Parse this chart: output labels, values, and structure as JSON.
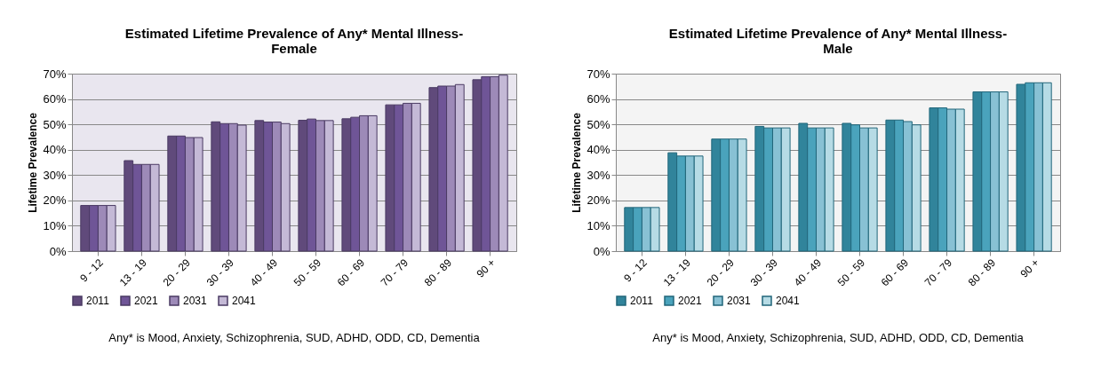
{
  "chart_data": [
    {
      "type": "bar",
      "title": "Estimated Lifetime Prevalence of Any* Mental Illness-\nFemale",
      "ylabel": "Lifetime Prevalence",
      "categories": [
        "9 - 12",
        "13 - 19",
        "20 - 29",
        "30 - 39",
        "40 - 49",
        "50 - 59",
        "60 - 69",
        "70 - 79",
        "80 - 89",
        "90 +"
      ],
      "series": [
        {
          "name": "2011",
          "color": "#604a7b",
          "values": [
            18,
            35.7,
            45.4,
            51,
            51.5,
            51.6,
            52.2,
            57.7,
            64.5,
            67.6
          ]
        },
        {
          "name": "2021",
          "color": "#6f5597",
          "values": [
            18,
            34.2,
            45.4,
            50.3,
            50.9,
            52.1,
            52.8,
            57.7,
            65.1,
            68.8
          ]
        },
        {
          "name": "2031",
          "color": "#9d8ab8",
          "values": [
            18,
            34.2,
            44.8,
            50.3,
            50.9,
            51.5,
            53.4,
            58.3,
            65.1,
            68.8
          ]
        },
        {
          "name": "2041",
          "color": "#c4b9d6",
          "values": [
            18,
            34.2,
            44.8,
            49.7,
            50.3,
            51.5,
            53.4,
            58.3,
            65.7,
            69.4
          ]
        }
      ],
      "ylim": [
        0,
        70
      ],
      "yticks": [
        {
          "value": 0,
          "label": "0%"
        },
        {
          "value": 10,
          "label": "10%"
        },
        {
          "value": 20,
          "label": "20%"
        },
        {
          "value": 30,
          "label": "30%"
        },
        {
          "value": 40,
          "label": "40%"
        },
        {
          "value": 50,
          "label": "50%"
        },
        {
          "value": 60,
          "label": "60%"
        },
        {
          "value": 70,
          "label": "70%"
        }
      ],
      "grid": "y",
      "legend": "bottom",
      "annotations": [
        "Any* is Mood, Anxiety, Schizophrenia, SUD, ADHD, ODD, CD, Dementia"
      ]
    },
    {
      "type": "bar",
      "title": "Estimated Lifetime Prevalence of Any* Mental Illness-\nMale",
      "ylabel": "Lifetime Prevalence",
      "categories": [
        "9 - 12",
        "13 - 19",
        "20 - 29",
        "30 - 39",
        "40 - 49",
        "50 - 59",
        "60 - 69",
        "70 - 79",
        "80 - 89",
        "90 +"
      ],
      "series": [
        {
          "name": "2011",
          "color": "#31849b",
          "values": [
            17.2,
            38.8,
            44.2,
            49.2,
            50.4,
            50.4,
            51.7,
            56.5,
            62.8,
            65.8
          ]
        },
        {
          "name": "2021",
          "color": "#4aa3bc",
          "values": [
            17.2,
            37.5,
            44.2,
            48.6,
            48.6,
            49.8,
            51.7,
            56.5,
            62.8,
            66.4
          ]
        },
        {
          "name": "2031",
          "color": "#88c1d4",
          "values": [
            17.2,
            37.5,
            44.2,
            48.6,
            48.6,
            48.6,
            51.1,
            56.0,
            62.8,
            66.4
          ]
        },
        {
          "name": "2041",
          "color": "#b6dbe5",
          "values": [
            17.2,
            37.5,
            44.2,
            48.6,
            48.6,
            48.6,
            49.8,
            56.0,
            62.8,
            66.4
          ]
        }
      ],
      "ylim": [
        0,
        70
      ],
      "yticks": [
        {
          "value": 0,
          "label": "0%"
        },
        {
          "value": 10,
          "label": "10%"
        },
        {
          "value": 20,
          "label": "20%"
        },
        {
          "value": 30,
          "label": "30%"
        },
        {
          "value": 40,
          "label": "40%"
        },
        {
          "value": 50,
          "label": "50%"
        },
        {
          "value": 60,
          "label": "60%"
        },
        {
          "value": 70,
          "label": "70%"
        }
      ],
      "grid": "y",
      "legend": "bottom",
      "annotations": [
        "Any* is Mood, Anxiety, Schizophrenia, SUD, ADHD, ODD, CD, Dementia"
      ]
    }
  ]
}
